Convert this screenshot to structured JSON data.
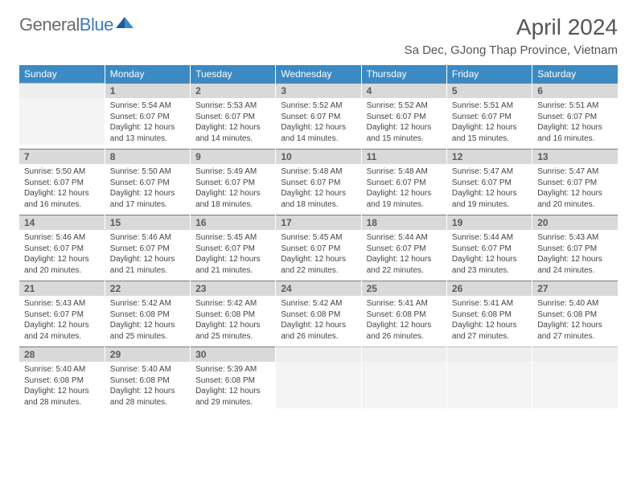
{
  "brand": {
    "part1": "General",
    "part2": "Blue"
  },
  "title": "April 2024",
  "location": "Sa Dec, GJong Thap Province, Vietnam",
  "colors": {
    "header_bg": "#3b8ac4",
    "header_text": "#ffffff",
    "daynum_bg": "#d9d9d9",
    "daynum_border": "#7a7a7a",
    "empty_bg": "#f4f4f4",
    "text": "#444444",
    "brand_gray": "#6b6b6b",
    "brand_blue": "#3b7bbf"
  },
  "typography": {
    "title_fontsize": 28,
    "location_fontsize": 15,
    "dayhead_fontsize": 12,
    "daynum_fontsize": 12,
    "cell_fontsize": 10
  },
  "day_headers": [
    "Sunday",
    "Monday",
    "Tuesday",
    "Wednesday",
    "Thursday",
    "Friday",
    "Saturday"
  ],
  "weeks": [
    [
      {
        "n": "",
        "empty": true
      },
      {
        "n": "1",
        "sr": "5:54 AM",
        "ss": "6:07 PM",
        "dl": "12 hours and 13 minutes."
      },
      {
        "n": "2",
        "sr": "5:53 AM",
        "ss": "6:07 PM",
        "dl": "12 hours and 14 minutes."
      },
      {
        "n": "3",
        "sr": "5:52 AM",
        "ss": "6:07 PM",
        "dl": "12 hours and 14 minutes."
      },
      {
        "n": "4",
        "sr": "5:52 AM",
        "ss": "6:07 PM",
        "dl": "12 hours and 15 minutes."
      },
      {
        "n": "5",
        "sr": "5:51 AM",
        "ss": "6:07 PM",
        "dl": "12 hours and 15 minutes."
      },
      {
        "n": "6",
        "sr": "5:51 AM",
        "ss": "6:07 PM",
        "dl": "12 hours and 16 minutes."
      }
    ],
    [
      {
        "n": "7",
        "sr": "5:50 AM",
        "ss": "6:07 PM",
        "dl": "12 hours and 16 minutes."
      },
      {
        "n": "8",
        "sr": "5:50 AM",
        "ss": "6:07 PM",
        "dl": "12 hours and 17 minutes."
      },
      {
        "n": "9",
        "sr": "5:49 AM",
        "ss": "6:07 PM",
        "dl": "12 hours and 18 minutes."
      },
      {
        "n": "10",
        "sr": "5:48 AM",
        "ss": "6:07 PM",
        "dl": "12 hours and 18 minutes."
      },
      {
        "n": "11",
        "sr": "5:48 AM",
        "ss": "6:07 PM",
        "dl": "12 hours and 19 minutes."
      },
      {
        "n": "12",
        "sr": "5:47 AM",
        "ss": "6:07 PM",
        "dl": "12 hours and 19 minutes."
      },
      {
        "n": "13",
        "sr": "5:47 AM",
        "ss": "6:07 PM",
        "dl": "12 hours and 20 minutes."
      }
    ],
    [
      {
        "n": "14",
        "sr": "5:46 AM",
        "ss": "6:07 PM",
        "dl": "12 hours and 20 minutes."
      },
      {
        "n": "15",
        "sr": "5:46 AM",
        "ss": "6:07 PM",
        "dl": "12 hours and 21 minutes."
      },
      {
        "n": "16",
        "sr": "5:45 AM",
        "ss": "6:07 PM",
        "dl": "12 hours and 21 minutes."
      },
      {
        "n": "17",
        "sr": "5:45 AM",
        "ss": "6:07 PM",
        "dl": "12 hours and 22 minutes."
      },
      {
        "n": "18",
        "sr": "5:44 AM",
        "ss": "6:07 PM",
        "dl": "12 hours and 22 minutes."
      },
      {
        "n": "19",
        "sr": "5:44 AM",
        "ss": "6:07 PM",
        "dl": "12 hours and 23 minutes."
      },
      {
        "n": "20",
        "sr": "5:43 AM",
        "ss": "6:07 PM",
        "dl": "12 hours and 24 minutes."
      }
    ],
    [
      {
        "n": "21",
        "sr": "5:43 AM",
        "ss": "6:07 PM",
        "dl": "12 hours and 24 minutes."
      },
      {
        "n": "22",
        "sr": "5:42 AM",
        "ss": "6:08 PM",
        "dl": "12 hours and 25 minutes."
      },
      {
        "n": "23",
        "sr": "5:42 AM",
        "ss": "6:08 PM",
        "dl": "12 hours and 25 minutes."
      },
      {
        "n": "24",
        "sr": "5:42 AM",
        "ss": "6:08 PM",
        "dl": "12 hours and 26 minutes."
      },
      {
        "n": "25",
        "sr": "5:41 AM",
        "ss": "6:08 PM",
        "dl": "12 hours and 26 minutes."
      },
      {
        "n": "26",
        "sr": "5:41 AM",
        "ss": "6:08 PM",
        "dl": "12 hours and 27 minutes."
      },
      {
        "n": "27",
        "sr": "5:40 AM",
        "ss": "6:08 PM",
        "dl": "12 hours and 27 minutes."
      }
    ],
    [
      {
        "n": "28",
        "sr": "5:40 AM",
        "ss": "6:08 PM",
        "dl": "12 hours and 28 minutes."
      },
      {
        "n": "29",
        "sr": "5:40 AM",
        "ss": "6:08 PM",
        "dl": "12 hours and 28 minutes."
      },
      {
        "n": "30",
        "sr": "5:39 AM",
        "ss": "6:08 PM",
        "dl": "12 hours and 29 minutes."
      },
      {
        "n": "",
        "empty": true
      },
      {
        "n": "",
        "empty": true
      },
      {
        "n": "",
        "empty": true
      },
      {
        "n": "",
        "empty": true
      }
    ]
  ],
  "labels": {
    "sunrise": "Sunrise: ",
    "sunset": "Sunset: ",
    "daylight": "Daylight: "
  }
}
